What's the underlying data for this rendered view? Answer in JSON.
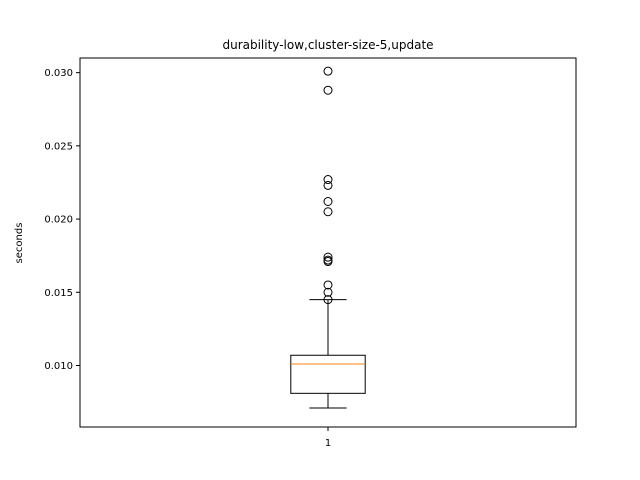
{
  "chart_data": {
    "type": "boxplot",
    "title": "durability-low,cluster-size-5,update",
    "xlabel": "",
    "ylabel": "seconds",
    "categories": [
      "1"
    ],
    "ylim": [
      0.0058,
      0.031
    ],
    "yticks": [
      {
        "value": 0.01,
        "label": "0.010"
      },
      {
        "value": 0.015,
        "label": "0.015"
      },
      {
        "value": 0.02,
        "label": "0.020"
      },
      {
        "value": 0.025,
        "label": "0.025"
      },
      {
        "value": 0.03,
        "label": "0.030"
      }
    ],
    "boxes": [
      {
        "category": "1",
        "whisker_low": 0.0071,
        "q1": 0.0081,
        "median": 0.0101,
        "q3": 0.0107,
        "whisker_high": 0.0145,
        "outliers": [
          0.0145,
          0.015,
          0.0155,
          0.0171,
          0.0172,
          0.0174,
          0.0205,
          0.0212,
          0.0223,
          0.0227,
          0.0288,
          0.0301
        ]
      }
    ],
    "colors": {
      "box": "#000000",
      "median": "#ff7f0e",
      "whisker": "#000000",
      "outlier": "#000000"
    }
  }
}
